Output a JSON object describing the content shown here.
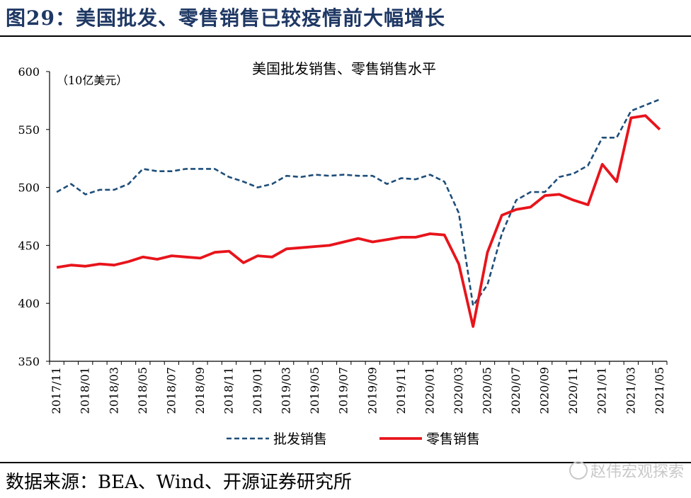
{
  "figure": {
    "title": "图29：美国批发、零售销售已较疫情前大幅增长",
    "source": "数据来源：BEA、Wind、开源证券研究所",
    "watermark": "赵伟宏观探索"
  },
  "chart_data": {
    "type": "line",
    "title": "美国批发销售、零售销售水平",
    "unit_label": "（10亿美元）",
    "ylim": [
      350,
      600
    ],
    "yticks": [
      350,
      400,
      450,
      500,
      550,
      600
    ],
    "x": [
      "2017/11",
      "2017/12",
      "2018/01",
      "2018/02",
      "2018/03",
      "2018/04",
      "2018/05",
      "2018/06",
      "2018/07",
      "2018/08",
      "2018/09",
      "2018/10",
      "2018/11",
      "2018/12",
      "2019/01",
      "2019/02",
      "2019/03",
      "2019/04",
      "2019/05",
      "2019/06",
      "2019/07",
      "2019/08",
      "2019/09",
      "2019/10",
      "2019/11",
      "2019/12",
      "2020/01",
      "2020/02",
      "2020/03",
      "2020/04",
      "2020/05",
      "2020/06",
      "2020/07",
      "2020/08",
      "2020/09",
      "2020/10",
      "2020/11",
      "2020/12",
      "2021/01",
      "2021/02",
      "2021/03",
      "2021/04",
      "2021/05"
    ],
    "xtick_labels": [
      "2017/11",
      "2018/01",
      "2018/03",
      "2018/05",
      "2018/07",
      "2018/09",
      "2018/11",
      "2019/01",
      "2019/03",
      "2019/05",
      "2019/07",
      "2019/09",
      "2019/11",
      "2020/01",
      "2020/03",
      "2020/05",
      "2020/07",
      "2020/09",
      "2020/11",
      "2021/01",
      "2021/03",
      "2021/05"
    ],
    "series": [
      {
        "name": "批发销售",
        "style": "dashed",
        "color": "#1f4e79",
        "values": [
          496,
          503,
          494,
          498,
          498,
          503,
          516,
          514,
          514,
          516,
          516,
          516,
          509,
          505,
          500,
          503,
          510,
          509,
          511,
          510,
          511,
          510,
          510,
          503,
          508,
          507,
          511,
          505,
          478,
          398,
          416,
          460,
          489,
          496,
          496,
          509,
          512,
          519,
          543,
          543,
          566,
          571,
          576
        ]
      },
      {
        "name": "零售销售",
        "style": "solid",
        "color": "#e8141b",
        "values": [
          431,
          433,
          432,
          434,
          433,
          436,
          440,
          438,
          441,
          440,
          439,
          444,
          445,
          435,
          441,
          440,
          447,
          448,
          449,
          450,
          453,
          456,
          453,
          455,
          457,
          457,
          460,
          459,
          434,
          380,
          444,
          476,
          481,
          483,
          493,
          494,
          489,
          485,
          520,
          505,
          560,
          562,
          550
        ]
      }
    ],
    "legend": "bottom",
    "grid": false
  }
}
